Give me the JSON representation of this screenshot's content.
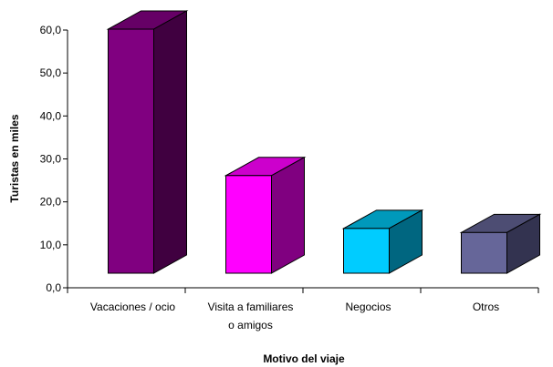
{
  "chart_data": {
    "type": "bar",
    "three_d": true,
    "categories": [
      [
        "Vacaciones / ocio"
      ],
      [
        "Visita a familiares",
        "o amigos"
      ],
      [
        "Negocios"
      ],
      [
        "Otros"
      ]
    ],
    "values": [
      60.0,
      24.0,
      11.0,
      10.0
    ],
    "xlabel": "Motivo del viaje",
    "ylabel": "Turistas en miles",
    "ylim": [
      0,
      60
    ],
    "yticks": [
      "0,0",
      "10,0",
      "20,0",
      "30,0",
      "40,0",
      "50,0",
      "60,0"
    ],
    "grid": false,
    "legend": "none",
    "colors": {
      "bars": [
        {
          "front": "#800080",
          "top": "#660066",
          "side": "#400040"
        },
        {
          "front": "#ff00ff",
          "top": "#cc00cc",
          "side": "#800080"
        },
        {
          "front": "#00ccff",
          "top": "#0099bb",
          "side": "#006680"
        },
        {
          "front": "#666699",
          "top": "#4d4d73",
          "side": "#333350"
        }
      ],
      "axis": "#000000"
    }
  }
}
